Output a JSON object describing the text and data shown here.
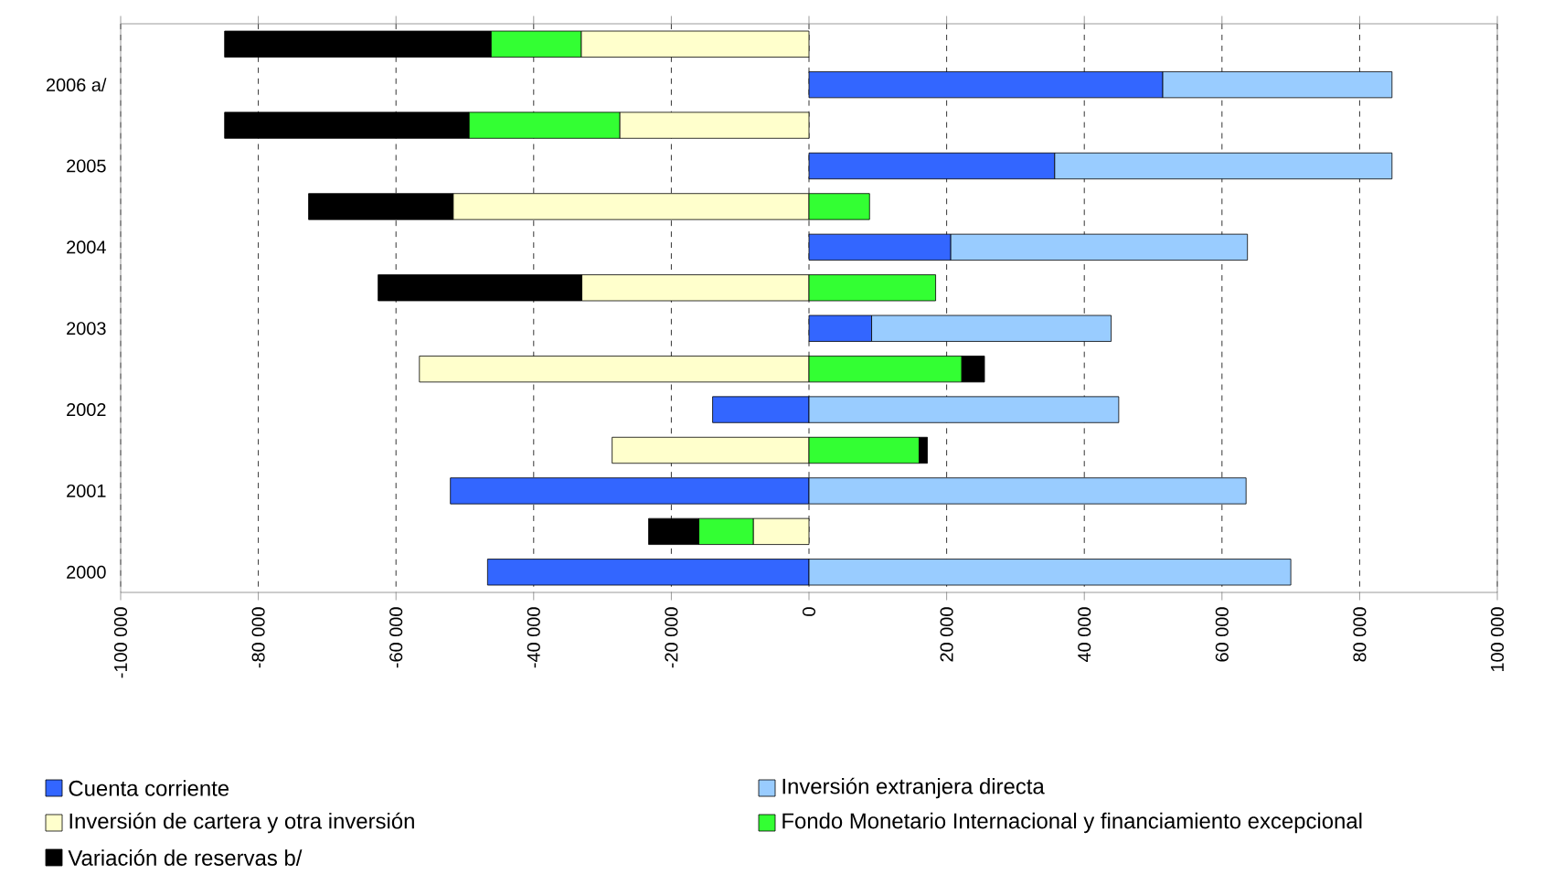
{
  "chart_data": {
    "type": "bar",
    "orientation": "horizontal",
    "stacked": true,
    "categories": [
      null,
      "2006 a/",
      null,
      "2005",
      null,
      "2004",
      null,
      "2003",
      null,
      "2002",
      null,
      "2001",
      null,
      "2000"
    ],
    "series": [
      {
        "name": "Cuenta corriente",
        "color": "#3366ff",
        "values": [
          null,
          51400,
          null,
          35700,
          null,
          20600,
          null,
          9100,
          null,
          -14000,
          null,
          -52100,
          null,
          -46700
        ]
      },
      {
        "name": "Inversión extranjera directa",
        "color": "#99ccff",
        "values": [
          null,
          33300,
          null,
          49000,
          null,
          43100,
          null,
          34800,
          null,
          45000,
          null,
          63500,
          null,
          70000
        ]
      },
      {
        "name": "Inversión de cartera y otra inversión",
        "color": "#ffffcc",
        "values": [
          -33100,
          null,
          -27500,
          null,
          -51700,
          null,
          -33000,
          null,
          -56600,
          null,
          -28600,
          null,
          -8100,
          null
        ]
      },
      {
        "name": "Fondo Monetario Internacional y financiamiento excepcional",
        "color": "#33ff33",
        "values": [
          -13100,
          null,
          -21900,
          null,
          8800,
          null,
          18400,
          null,
          22200,
          null,
          16000,
          null,
          -7900,
          null
        ]
      },
      {
        "name": "Variación de reservas b/",
        "color": "#000000",
        "values": [
          -38700,
          null,
          -35500,
          null,
          -21000,
          null,
          -29600,
          null,
          3300,
          null,
          1200,
          null,
          -7300,
          null
        ]
      }
    ],
    "xlim": [
      -100000,
      100000
    ],
    "xticks": [
      {
        "value": -100000,
        "label": "-100 000"
      },
      {
        "value": -80000,
        "label": "-80 000"
      },
      {
        "value": -60000,
        "label": "-60 000"
      },
      {
        "value": -40000,
        "label": "-40 000"
      },
      {
        "value": -20000,
        "label": "-20 000"
      },
      {
        "value": 0,
        "label": "0"
      },
      {
        "value": 20000,
        "label": "20 000"
      },
      {
        "value": 40000,
        "label": "40 000"
      },
      {
        "value": 60000,
        "label": "60 000"
      },
      {
        "value": 80000,
        "label": "80 000"
      },
      {
        "value": 100000,
        "label": "100 000"
      }
    ],
    "grid": "x",
    "legend": "bottom"
  }
}
